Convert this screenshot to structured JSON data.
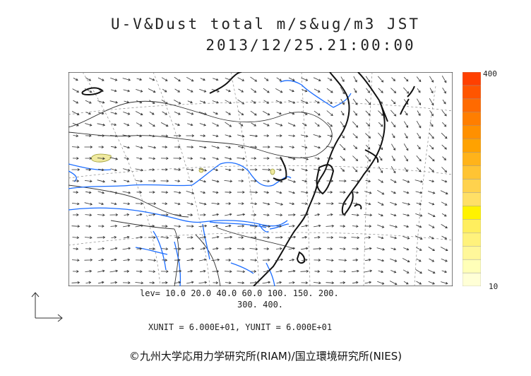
{
  "title_line1": "U-V&Dust total m/s&ug/m3 JST",
  "title_line2": "2013/12/25.21:00:00",
  "colorbar": {
    "max_label": "400",
    "min_label": "10",
    "colors": [
      "#ffffd6",
      "#ffffb8",
      "#fff79a",
      "#fff27c",
      "#ffee5e",
      "#fff200",
      "#ffe066",
      "#ffd24d",
      "#ffc433",
      "#ffb31a",
      "#ffa200",
      "#ff9000",
      "#ff7e00",
      "#ff6a00",
      "#ff5500",
      "#ff4000"
    ]
  },
  "levels_line1": "lev= 10.0 20.0 40.0 60.0 100. 150. 200.",
  "levels_line2": "300. 400.",
  "units": "XUNIT = 6.000E+01, YUNIT = 6.000E+01",
  "credit": "©九州大学応用力学研究所(RIAM)/国立環境研究所(NIES)",
  "colors": {
    "coast": "#111111",
    "river": "#1a6cff",
    "border": "#333333",
    "grid": "#888888",
    "dust": "#f0eaa0"
  }
}
